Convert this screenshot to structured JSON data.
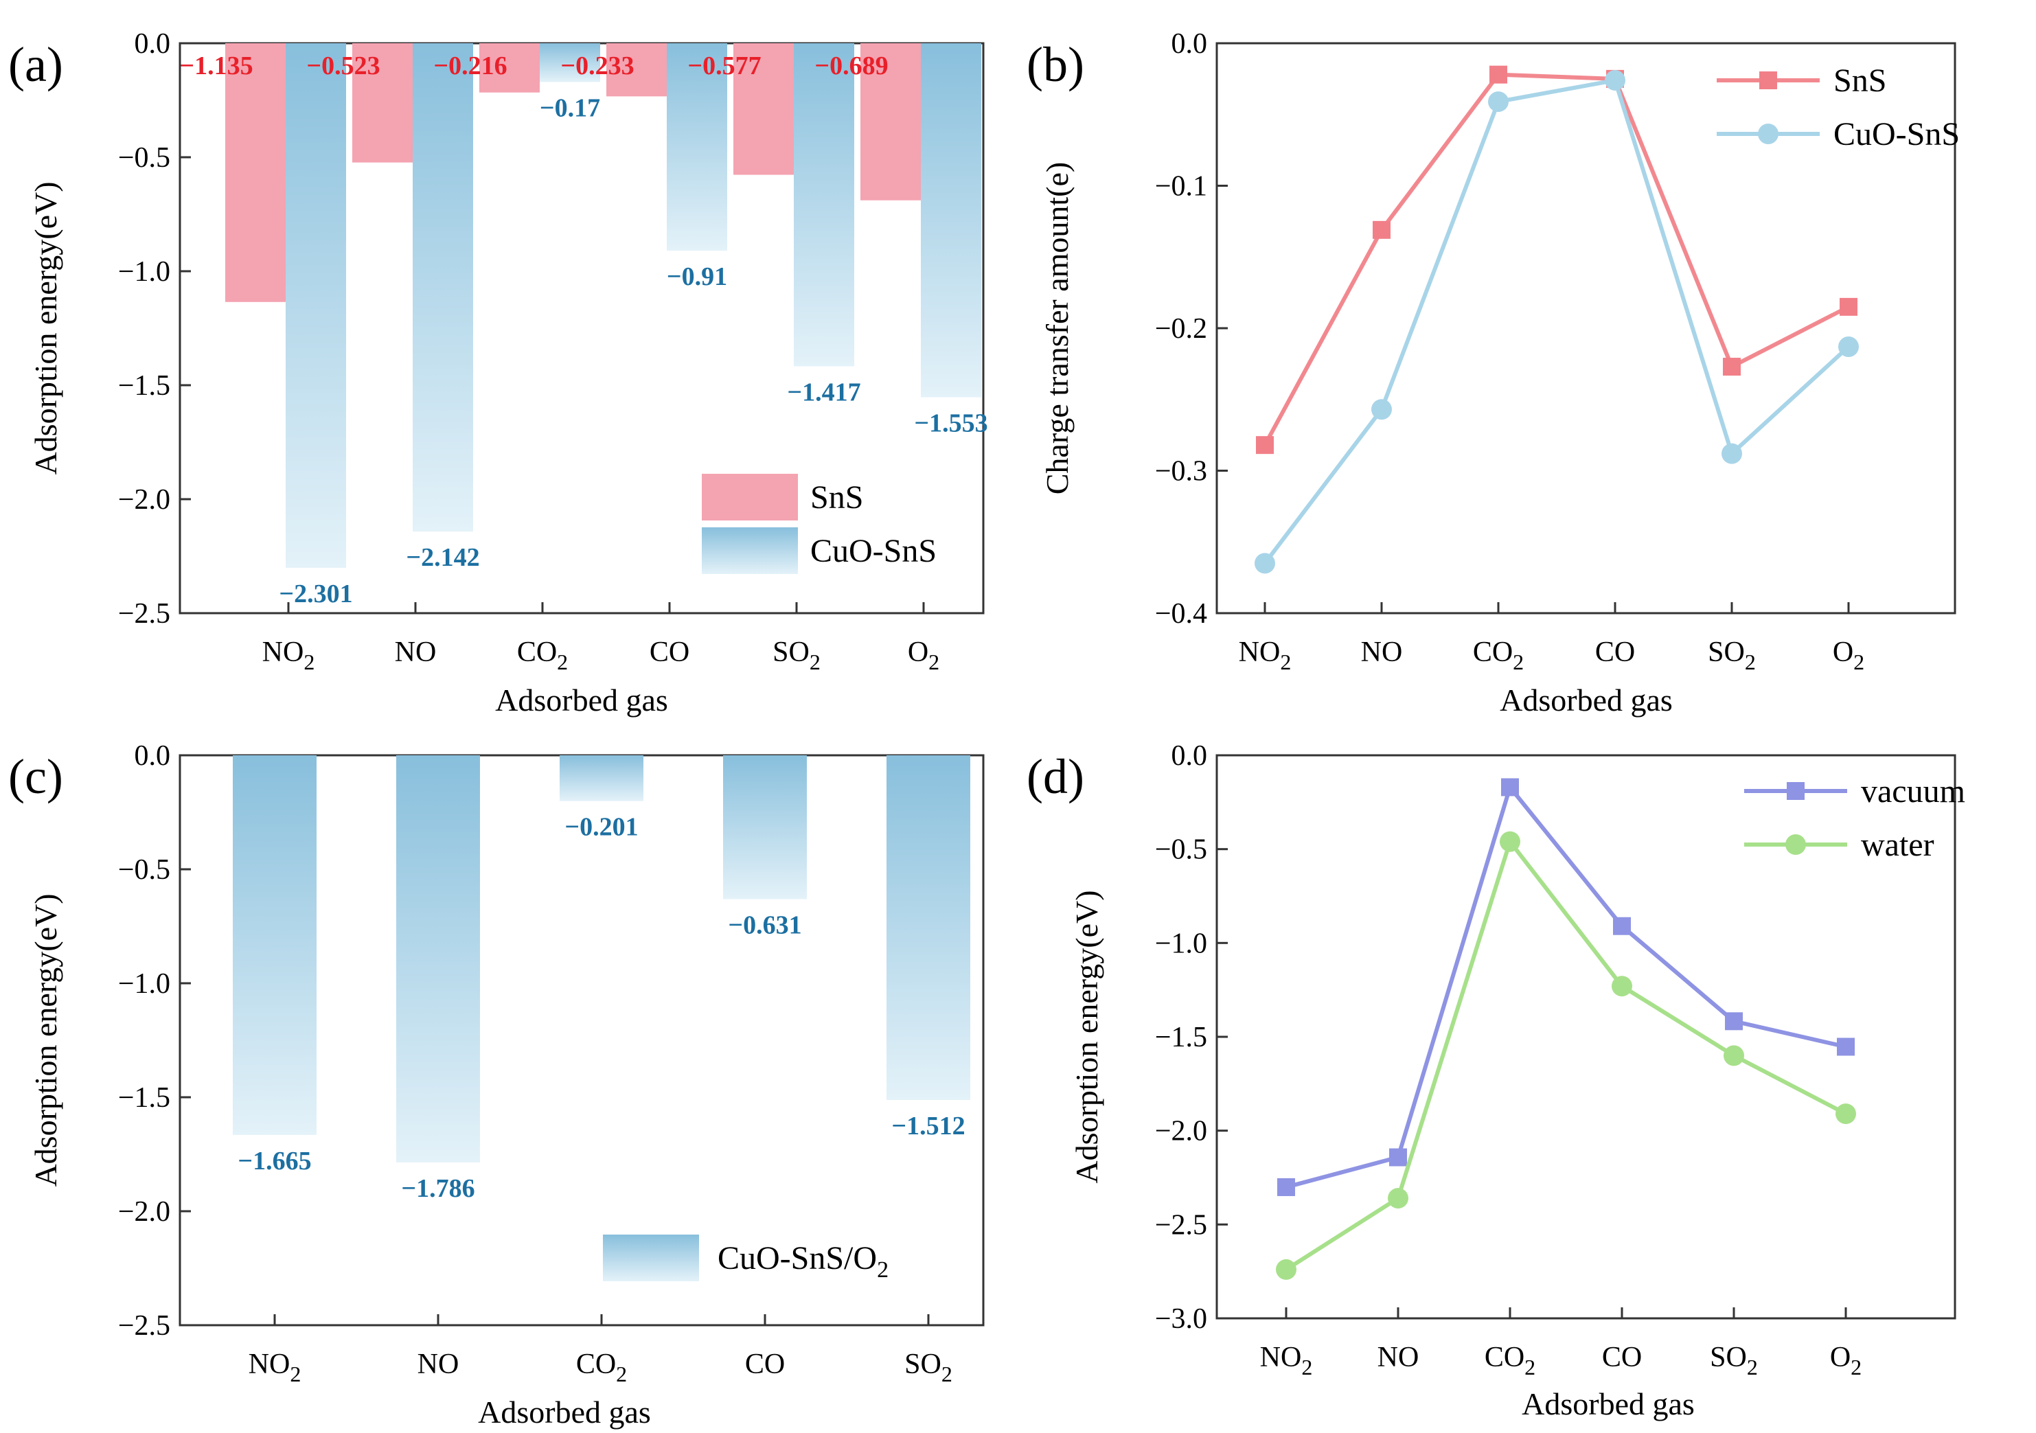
{
  "colors": {
    "sns": "#f4a3b1",
    "sns_line": "#f2888f",
    "sns_marker": "#f17f88",
    "sns_label": "#e8202a",
    "cuo_dark": "#88bfdc",
    "cuo_light": "#e4f2f9",
    "cuo_line": "#a8d4e8",
    "cuo_label": "#1c6fa1",
    "vacuum": "#8e93e3",
    "water": "#a7e08a"
  },
  "chart_data": [
    {
      "type": "bar",
      "panel_label": "(a)",
      "categories": [
        "NO2",
        "NO",
        "CO2",
        "CO",
        "SO2",
        "O2"
      ],
      "category_labels": [
        {
          "base": "NO",
          "sub": "2"
        },
        {
          "base": "NO",
          "sub": ""
        },
        {
          "base": "CO",
          "sub": "2"
        },
        {
          "base": "CO",
          "sub": ""
        },
        {
          "base": "SO",
          "sub": "2"
        },
        {
          "base": "O",
          "sub": "2"
        }
      ],
      "series": [
        {
          "name": "SnS",
          "values": [
            -1.135,
            -0.523,
            -0.216,
            -0.233,
            -0.577,
            -0.689
          ],
          "labels": [
            "−1.135",
            "−0.523",
            "−0.216",
            "−0.233",
            "−0.577",
            "−0.689"
          ]
        },
        {
          "name": "CuO-SnS",
          "values": [
            -2.301,
            -2.142,
            -0.17,
            -0.91,
            -1.417,
            -1.553
          ],
          "labels": [
            "−2.301",
            "−2.142",
            "−0.17",
            "−0.91",
            "−1.417",
            "−1.553"
          ]
        }
      ],
      "xlabel": "Adsorbed gas",
      "ylabel": "Adsorption energy(eV)",
      "ylim": [
        -2.5,
        0.0
      ],
      "yticks": [
        "0.0",
        "-0.5",
        "-1.0",
        "-1.5",
        "-2.0",
        "-2.5"
      ],
      "ytick_values": [
        0.0,
        -0.5,
        -1.0,
        -1.5,
        -2.0,
        -2.5
      ],
      "legend_position": "bottom-right"
    },
    {
      "type": "line",
      "panel_label": "(b)",
      "categories": [
        "NO2",
        "NO",
        "CO2",
        "CO",
        "SO2",
        "O2"
      ],
      "category_labels": [
        {
          "base": "NO",
          "sub": "2"
        },
        {
          "base": "NO",
          "sub": ""
        },
        {
          "base": "CO",
          "sub": "2"
        },
        {
          "base": "CO",
          "sub": ""
        },
        {
          "base": "SO",
          "sub": "2"
        },
        {
          "base": "O",
          "sub": "2"
        }
      ],
      "series": [
        {
          "name": "SnS",
          "marker": "square",
          "values": [
            -0.282,
            -0.131,
            -0.022,
            -0.025,
            -0.227,
            -0.185
          ]
        },
        {
          "name": "CuO-SnS",
          "marker": "circle",
          "values": [
            -0.365,
            -0.257,
            -0.041,
            -0.026,
            -0.288,
            -0.213
          ]
        }
      ],
      "xlabel": "Adsorbed gas",
      "ylabel": "Charge transfer amount(e)",
      "ylim": [
        -0.4,
        0.0
      ],
      "yticks": [
        "0.0",
        "-0.1",
        "-0.2",
        "-0.3",
        "-0.4"
      ],
      "ytick_values": [
        0.0,
        -0.1,
        -0.2,
        -0.3,
        -0.4
      ],
      "legend_position": "top-right"
    },
    {
      "type": "bar",
      "panel_label": "(c)",
      "categories": [
        "NO2",
        "NO",
        "CO2",
        "CO",
        "SO2"
      ],
      "category_labels": [
        {
          "base": "NO",
          "sub": "2"
        },
        {
          "base": "NO",
          "sub": ""
        },
        {
          "base": "CO",
          "sub": "2"
        },
        {
          "base": "CO",
          "sub": ""
        },
        {
          "base": "SO",
          "sub": "2"
        }
      ],
      "series": [
        {
          "name": "CuO-SnS/O2",
          "name_base": "CuO-SnS/O",
          "name_sub": "2",
          "values": [
            -1.665,
            -1.786,
            -0.201,
            -0.631,
            -1.512
          ],
          "labels": [
            "−1.665",
            "−1.786",
            "−0.201",
            "−0.631",
            "−1.512"
          ]
        }
      ],
      "xlabel": "Adsorbed gas",
      "ylabel": "Adsorption energy(eV)",
      "ylim": [
        -2.5,
        0.0
      ],
      "yticks": [
        "0.0",
        "-0.5",
        "-1.0",
        "-1.5",
        "-2.0",
        "-2.5"
      ],
      "ytick_values": [
        0.0,
        -0.5,
        -1.0,
        -1.5,
        -2.0,
        -2.5
      ],
      "legend_position": "bottom-right"
    },
    {
      "type": "line",
      "panel_label": "(d)",
      "categories": [
        "NO2",
        "NO",
        "CO2",
        "CO",
        "SO2",
        "O2"
      ],
      "category_labels": [
        {
          "base": "NO",
          "sub": "2"
        },
        {
          "base": "NO",
          "sub": ""
        },
        {
          "base": "CO",
          "sub": "2"
        },
        {
          "base": "CO",
          "sub": ""
        },
        {
          "base": "SO",
          "sub": "2"
        },
        {
          "base": "O",
          "sub": "2"
        }
      ],
      "series": [
        {
          "name": "vacuum",
          "marker": "square",
          "values": [
            -2.301,
            -2.142,
            -0.17,
            -0.91,
            -1.417,
            -1.553
          ]
        },
        {
          "name": "water",
          "marker": "circle",
          "values": [
            -2.74,
            -2.36,
            -0.46,
            -1.23,
            -1.6,
            -1.91
          ]
        }
      ],
      "xlabel": "Adsorbed gas",
      "ylabel": "Adsorption energy(eV)",
      "ylim": [
        -3.0,
        0.0
      ],
      "yticks": [
        "0.0",
        "-0.5",
        "-1.0",
        "-1.5",
        "-2.0",
        "-2.5",
        "-3.0"
      ],
      "ytick_values": [
        0.0,
        -0.5,
        -1.0,
        -1.5,
        -2.0,
        -2.5,
        -3.0
      ],
      "legend_position": "top-right"
    }
  ]
}
